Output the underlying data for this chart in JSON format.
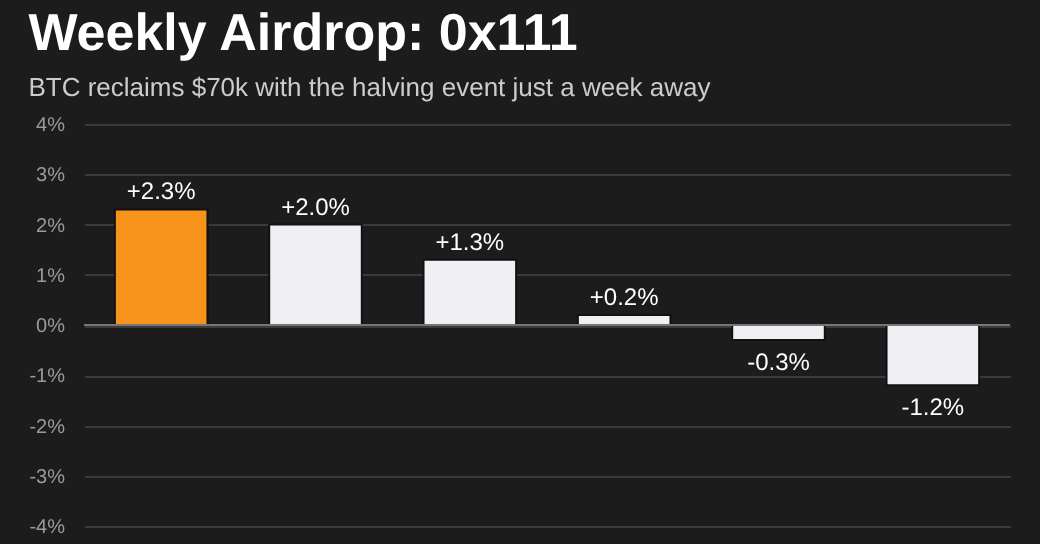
{
  "chart_data": {
    "type": "bar",
    "title": "Weekly Airdrop: 0x111",
    "subtitle": "BTC reclaims $70k with the halving event just a week away",
    "categories": [
      null,
      null,
      null,
      null,
      null,
      null
    ],
    "values": [
      2.3,
      2.0,
      1.3,
      0.2,
      -0.3,
      -1.2
    ],
    "colors": [
      "#f7931a",
      "#f0f0f4",
      "#f0f0f4",
      "#f0f0f4",
      "#f0f0f4",
      "#f0f0f4"
    ],
    "value_labels": [
      "+2.3%",
      "+2.0%",
      "+1.3%",
      "+0.2%",
      "-0.3%",
      "-1.2%"
    ],
    "ylim": [
      -4,
      4
    ],
    "yticks": [
      {
        "value": 4,
        "label": "4%"
      },
      {
        "value": 3,
        "label": "3%"
      },
      {
        "value": 2,
        "label": "2%"
      },
      {
        "value": 1,
        "label": "1%"
      },
      {
        "value": 0,
        "label": "0%"
      },
      {
        "value": -1,
        "label": "-1%"
      },
      {
        "value": -2,
        "label": "-2%"
      },
      {
        "value": -3,
        "label": "-3%"
      },
      {
        "value": -4,
        "label": "-4%"
      }
    ],
    "grid": "y",
    "tick_labels": "y"
  }
}
